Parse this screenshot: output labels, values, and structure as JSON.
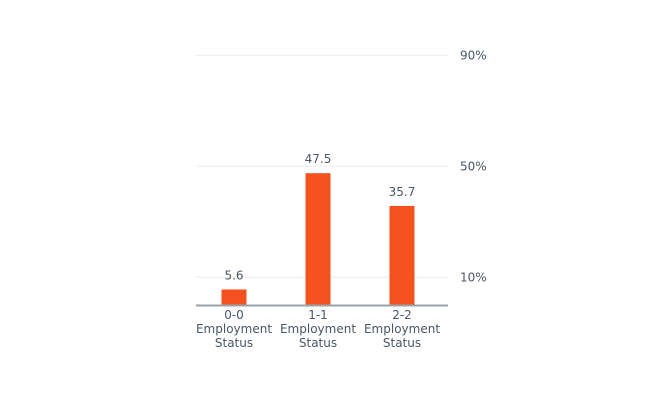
{
  "chart_data": {
    "type": "bar",
    "categories": [
      [
        "0-0",
        "Employment",
        "Status"
      ],
      [
        "1-1",
        "Employment",
        "Status"
      ],
      [
        "2-2",
        "Employment",
        "Status"
      ]
    ],
    "values": [
      5.6,
      47.5,
      35.7
    ],
    "data_labels": [
      "5.6",
      "47.5",
      "35.7"
    ],
    "yticks": [
      {
        "value": 10,
        "label": "10%"
      },
      {
        "value": 50,
        "label": "50%"
      },
      {
        "value": 90,
        "label": "90%"
      }
    ],
    "ylim": [
      0,
      90
    ],
    "y_axis_side": "right",
    "grid": true,
    "bar_color": "#f4511e",
    "grid_color": "#eeeeee",
    "axis_color": "#9aa3ad",
    "text_color": "#4a5764"
  }
}
